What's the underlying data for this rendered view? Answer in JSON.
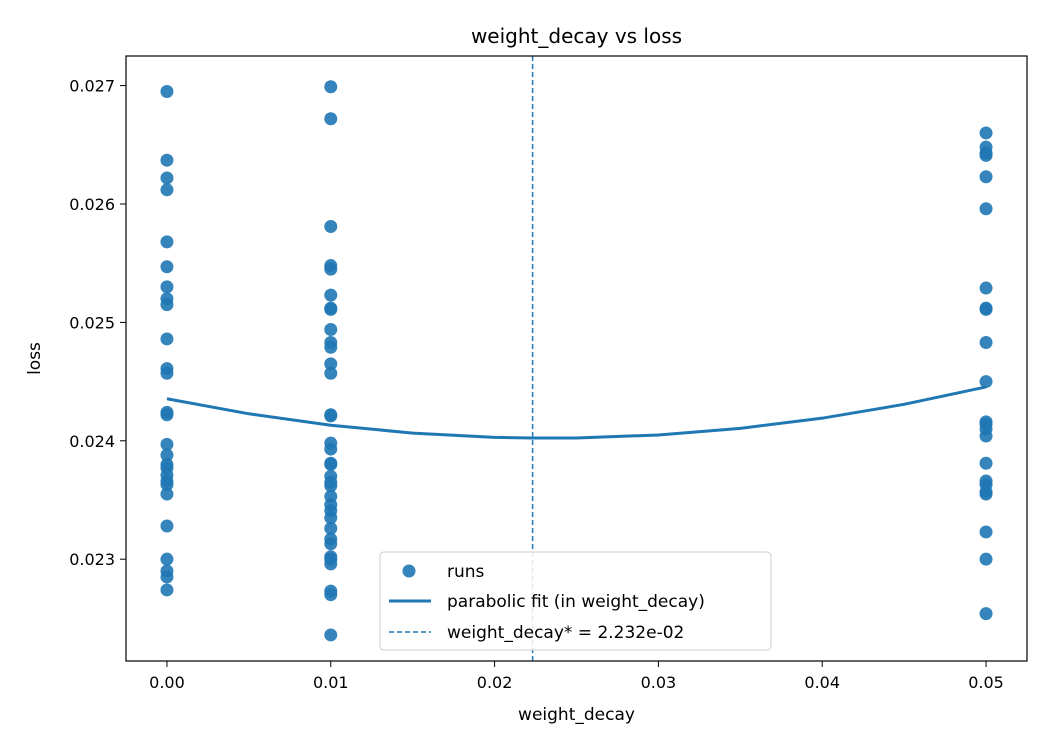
{
  "chart_data": {
    "type": "scatter",
    "title": "weight_decay vs loss",
    "xlabel": "weight_decay",
    "ylabel": "loss",
    "xlim": [
      -0.0025,
      0.0525
    ],
    "ylim": [
      0.02214,
      0.02725
    ],
    "xticks": [
      0.0,
      0.01,
      0.02,
      0.03,
      0.04,
      0.05
    ],
    "xtick_labels": [
      "0.00",
      "0.01",
      "0.02",
      "0.03",
      "0.04",
      "0.05"
    ],
    "yticks": [
      0.023,
      0.024,
      0.025,
      0.026,
      0.027
    ],
    "ytick_labels": [
      "0.023",
      "0.024",
      "0.025",
      "0.026",
      "0.027"
    ],
    "grid": false,
    "legend_position": "lower-center",
    "series": [
      {
        "name": "runs",
        "type": "scatter",
        "color": "#1f77b4",
        "points": [
          [
            0.0,
            0.02695
          ],
          [
            0.0,
            0.02637
          ],
          [
            0.0,
            0.02622
          ],
          [
            0.0,
            0.02612
          ],
          [
            0.0,
            0.02568
          ],
          [
            0.0,
            0.02547
          ],
          [
            0.0,
            0.0253
          ],
          [
            0.0,
            0.0252
          ],
          [
            0.0,
            0.02515
          ],
          [
            0.0,
            0.02486
          ],
          [
            0.0,
            0.02461
          ],
          [
            0.0,
            0.02457
          ],
          [
            0.0,
            0.02424
          ],
          [
            0.0,
            0.02422
          ],
          [
            0.0,
            0.02397
          ],
          [
            0.0,
            0.02388
          ],
          [
            0.0,
            0.0238
          ],
          [
            0.0,
            0.02377
          ],
          [
            0.0,
            0.02371
          ],
          [
            0.0,
            0.02366
          ],
          [
            0.0,
            0.02363
          ],
          [
            0.0,
            0.02355
          ],
          [
            0.0,
            0.02328
          ],
          [
            0.0,
            0.023
          ],
          [
            0.0,
            0.0229
          ],
          [
            0.0,
            0.02285
          ],
          [
            0.0,
            0.02274
          ],
          [
            0.01,
            0.02699
          ],
          [
            0.01,
            0.02672
          ],
          [
            0.01,
            0.02581
          ],
          [
            0.01,
            0.02548
          ],
          [
            0.01,
            0.02545
          ],
          [
            0.01,
            0.02523
          ],
          [
            0.01,
            0.02512
          ],
          [
            0.01,
            0.02511
          ],
          [
            0.01,
            0.02494
          ],
          [
            0.01,
            0.02483
          ],
          [
            0.01,
            0.02479
          ],
          [
            0.01,
            0.02465
          ],
          [
            0.01,
            0.02457
          ],
          [
            0.01,
            0.02422
          ],
          [
            0.01,
            0.02421
          ],
          [
            0.01,
            0.02398
          ],
          [
            0.01,
            0.02393
          ],
          [
            0.01,
            0.02381
          ],
          [
            0.01,
            0.0238
          ],
          [
            0.01,
            0.0237
          ],
          [
            0.01,
            0.02365
          ],
          [
            0.01,
            0.02362
          ],
          [
            0.01,
            0.02353
          ],
          [
            0.01,
            0.02346
          ],
          [
            0.01,
            0.02341
          ],
          [
            0.01,
            0.02335
          ],
          [
            0.01,
            0.02326
          ],
          [
            0.01,
            0.02317
          ],
          [
            0.01,
            0.02313
          ],
          [
            0.01,
            0.02302
          ],
          [
            0.01,
            0.023
          ],
          [
            0.01,
            0.02296
          ],
          [
            0.01,
            0.02273
          ],
          [
            0.01,
            0.0227
          ],
          [
            0.01,
            0.02236
          ],
          [
            0.05,
            0.0266
          ],
          [
            0.05,
            0.02648
          ],
          [
            0.05,
            0.02643
          ],
          [
            0.05,
            0.02641
          ],
          [
            0.05,
            0.02623
          ],
          [
            0.05,
            0.02596
          ],
          [
            0.05,
            0.02529
          ],
          [
            0.05,
            0.02512
          ],
          [
            0.05,
            0.02511
          ],
          [
            0.05,
            0.02483
          ],
          [
            0.05,
            0.0245
          ],
          [
            0.05,
            0.02416
          ],
          [
            0.05,
            0.02414
          ],
          [
            0.05,
            0.0241
          ],
          [
            0.05,
            0.02404
          ],
          [
            0.05,
            0.02381
          ],
          [
            0.05,
            0.02366
          ],
          [
            0.05,
            0.02363
          ],
          [
            0.05,
            0.02357
          ],
          [
            0.05,
            0.02355
          ],
          [
            0.05,
            0.02323
          ],
          [
            0.05,
            0.023
          ],
          [
            0.05,
            0.02254
          ]
        ]
      },
      {
        "name": "parabolic fit (in weight_decay)",
        "type": "line",
        "color": "#1f77b4",
        "x": [
          0.0,
          0.005,
          0.01,
          0.015,
          0.02,
          0.02232,
          0.025,
          0.03,
          0.035,
          0.04,
          0.045,
          0.05
        ],
        "y": [
          0.024355,
          0.024228,
          0.024131,
          0.024065,
          0.024029,
          0.024023,
          0.024024,
          0.024049,
          0.024105,
          0.024191,
          0.024308,
          0.024455
        ]
      },
      {
        "name": "weight_decay* = 2.232e-02",
        "type": "vline",
        "color": "#1f77b4",
        "x": 0.02232
      }
    ]
  }
}
